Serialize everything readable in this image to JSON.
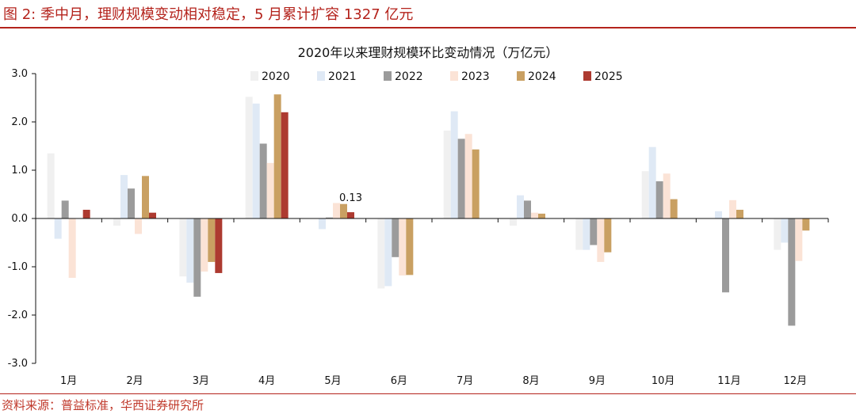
{
  "header": {
    "title": "图 2:  季中月，理财规模变动相对稳定，5 月累计扩容 1327 亿元"
  },
  "source": "资料来源：普益标准，华西证券研究所",
  "colors": {
    "accent": "#b4231c",
    "series": [
      "#f0f0f0",
      "#dfe9f5",
      "#9b9b9b",
      "#fbe3d6",
      "#c9a062",
      "#ad3a30"
    ]
  },
  "chart_data": {
    "type": "bar",
    "title": "2020年以来理财规模环比变动情况（万亿元）",
    "categories": [
      "1月",
      "2月",
      "3月",
      "4月",
      "5月",
      "6月",
      "7月",
      "8月",
      "9月",
      "10月",
      "11月",
      "12月"
    ],
    "ylim": [
      -3.0,
      3.0
    ],
    "yticks": [
      "3.0",
      "2.0",
      "1.0",
      "0.0",
      "-1.0",
      "-2.0",
      "-3.0"
    ],
    "legend_position": "top",
    "grid": false,
    "series": [
      {
        "name": "2020",
        "values": [
          1.35,
          -0.15,
          -1.2,
          2.52,
          0.0,
          -1.45,
          1.82,
          -0.15,
          -0.65,
          0.98,
          0.0,
          -0.65
        ]
      },
      {
        "name": "2021",
        "values": [
          -0.42,
          0.9,
          -1.33,
          2.38,
          -0.22,
          -1.4,
          2.22,
          0.48,
          -0.65,
          1.48,
          0.15,
          -0.5
        ]
      },
      {
        "name": "2022",
        "values": [
          0.37,
          0.62,
          -1.62,
          1.55,
          0.02,
          -0.8,
          1.65,
          0.37,
          -0.55,
          0.77,
          -1.53,
          -2.22
        ]
      },
      {
        "name": "2023",
        "values": [
          -1.23,
          -0.32,
          -1.1,
          1.15,
          0.32,
          -1.18,
          1.75,
          0.12,
          -0.9,
          0.93,
          0.38,
          -0.88
        ]
      },
      {
        "name": "2024",
        "values": [
          0.0,
          0.88,
          -0.9,
          2.57,
          0.3,
          -1.17,
          1.43,
          0.1,
          -0.7,
          0.4,
          0.18,
          -0.25
        ]
      },
      {
        "name": "2025",
        "values": [
          0.18,
          0.12,
          -1.13,
          2.2,
          0.13,
          null,
          null,
          null,
          null,
          null,
          null,
          null
        ]
      }
    ],
    "annotations": [
      {
        "text": "0.13"
      }
    ]
  }
}
